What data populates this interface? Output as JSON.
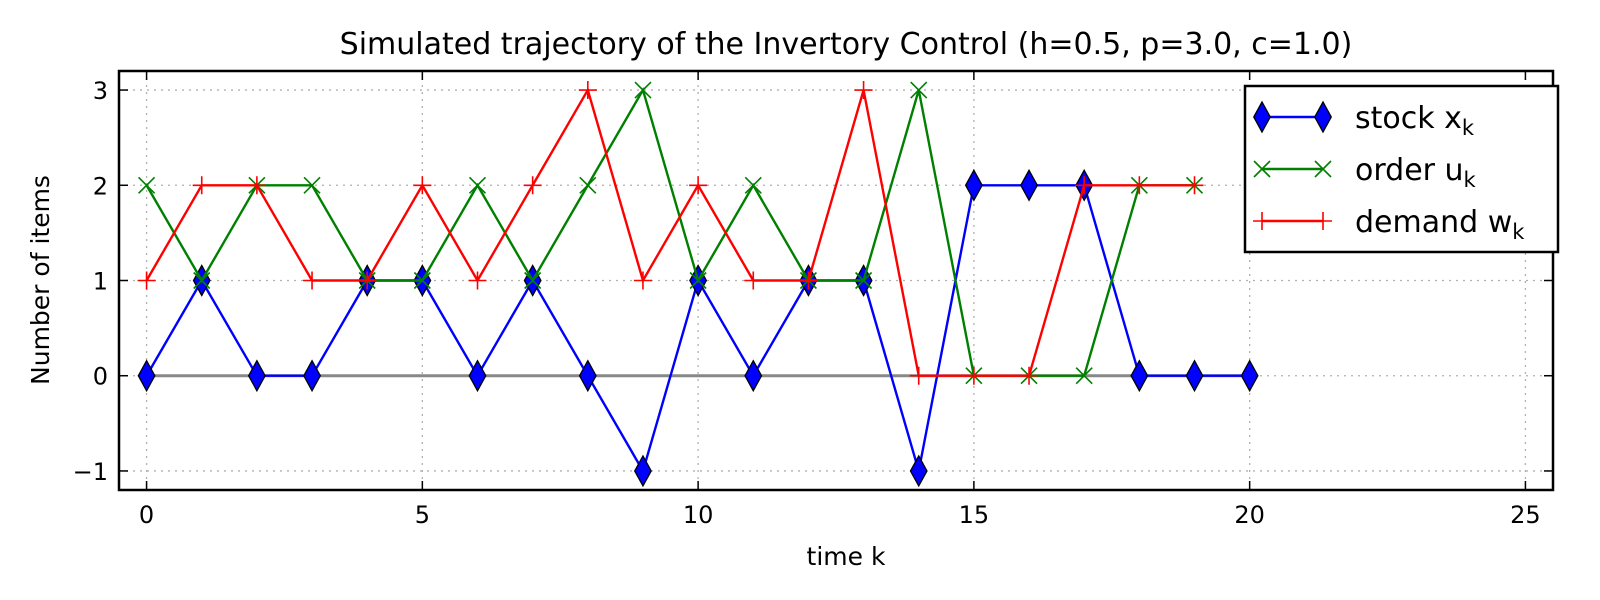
{
  "chart_data": {
    "type": "line",
    "title": "Simulated trajectory of the Invertory Control (h=0.5, p=3.0, c=1.0)",
    "xlabel": "time k",
    "ylabel": "Number of items",
    "xlim": [
      -0.5,
      25.5
    ],
    "ylim": [
      -1.2,
      3.2
    ],
    "xticks": [
      0,
      5,
      10,
      15,
      20,
      25
    ],
    "yticks": [
      -1,
      0,
      1,
      2,
      3
    ],
    "xtick_labels": [
      "0",
      "5",
      "10",
      "15",
      "20",
      "25"
    ],
    "ytick_labels": [
      "−1",
      "0",
      "1",
      "2",
      "3"
    ],
    "grid": true,
    "legend_position": "top-right",
    "baseline": {
      "y": 0,
      "x_range": [
        0,
        20
      ],
      "color": "#888888"
    },
    "series": [
      {
        "name": "stock x",
        "subscript": "k",
        "color": "#0000ff",
        "marker": "diamond",
        "x": [
          0,
          1,
          2,
          3,
          4,
          5,
          6,
          7,
          8,
          9,
          10,
          11,
          12,
          13,
          14,
          15,
          16,
          17,
          18,
          19,
          20
        ],
        "values": [
          0,
          1,
          0,
          0,
          1,
          1,
          0,
          1,
          0,
          -1,
          1,
          0,
          1,
          1,
          -1,
          2,
          2,
          2,
          0,
          0,
          0
        ]
      },
      {
        "name": "order u",
        "subscript": "k",
        "color": "#008000",
        "marker": "x",
        "x": [
          0,
          1,
          2,
          3,
          4,
          5,
          6,
          7,
          8,
          9,
          10,
          11,
          12,
          13,
          14,
          15,
          16,
          17,
          18,
          19
        ],
        "values": [
          2,
          1,
          2,
          2,
          1,
          1,
          2,
          1,
          2,
          3,
          1,
          2,
          1,
          1,
          3,
          0,
          0,
          0,
          2,
          2
        ]
      },
      {
        "name": "demand w",
        "subscript": "k",
        "color": "#ff0000",
        "marker": "plus",
        "x": [
          0,
          1,
          2,
          3,
          4,
          5,
          6,
          7,
          8,
          9,
          10,
          11,
          12,
          13,
          14,
          15,
          16,
          17,
          18,
          19
        ],
        "values": [
          1,
          2,
          2,
          1,
          1,
          2,
          1,
          2,
          3,
          1,
          2,
          1,
          1,
          3,
          0,
          0,
          0,
          2,
          2,
          2
        ]
      }
    ]
  }
}
